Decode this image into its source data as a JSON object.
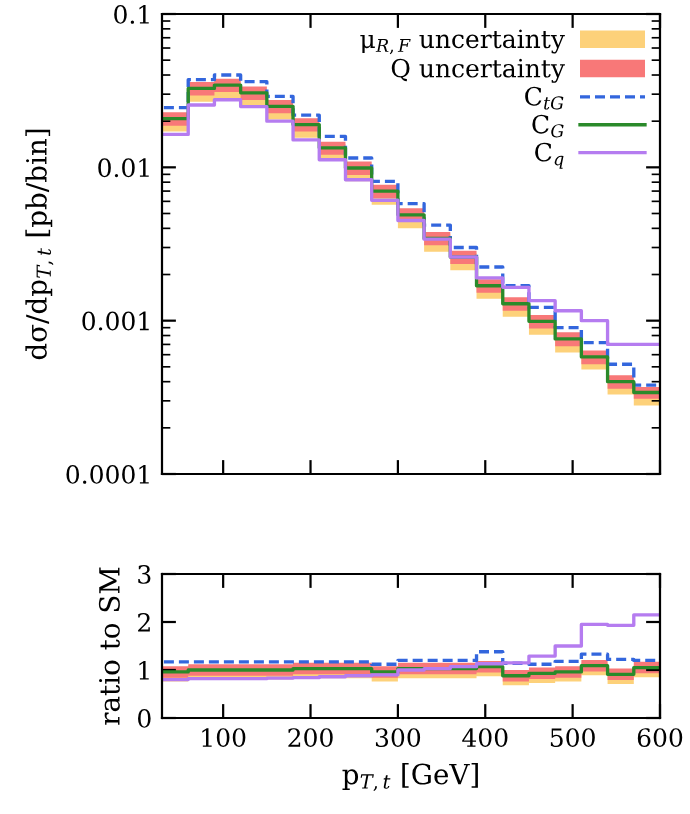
{
  "chart_data": [
    {
      "type": "step",
      "ylabel": "dσ/dp$_{T,t}$ [pb/bin]",
      "log": "y",
      "legend": "top right",
      "tick_labels": "y",
      "x": [
        45,
        75,
        105,
        135,
        165,
        195,
        225,
        255,
        285,
        315,
        345,
        375,
        405,
        435,
        465,
        495,
        525,
        555,
        585
      ],
      "xlim": [
        30,
        600
      ],
      "xticks": [
        100,
        200,
        300,
        400,
        500,
        600
      ],
      "ylim": [
        0.0001,
        0.1
      ],
      "yticks": [
        0.0001,
        0.001,
        0.01,
        0.1
      ],
      "series": [
        {
          "type": "step",
          "name": "μ$_{R,F}$ uncertainty",
          "color": "#fdd17a",
          "values": [
            null,
            null,
            null,
            null,
            null,
            null,
            null,
            null,
            null,
            null,
            null,
            null,
            null,
            null,
            null,
            null,
            null,
            null,
            null
          ],
          "lower": [
            0.0171,
            0.0268,
            0.0282,
            0.0251,
            0.0205,
            0.0156,
            0.011,
            0.0081,
            0.0057,
            0.004,
            0.00282,
            0.00213,
            0.00139,
            0.00106,
            0.00081,
            0.00062,
            0.00048,
            0.00033,
            0.00028
          ],
          "upper": [
            0.022,
            0.0347,
            0.0365,
            0.0324,
            0.0265,
            0.0201,
            0.0142,
            0.0105,
            0.0074,
            0.0052,
            0.00365,
            0.00276,
            0.00179,
            0.00137,
            0.00105,
            0.00081,
            0.00061,
            0.00042,
            0.00036
          ]
        },
        {
          "type": "step",
          "name": "Q uncertainty",
          "color": "#f87878",
          "values": [
            null,
            null,
            null,
            null,
            null,
            null,
            null,
            null,
            null,
            null,
            null,
            null,
            null,
            null,
            null,
            null,
            null,
            null,
            null
          ],
          "lower": [
            0.0187,
            0.0294,
            0.031,
            0.0275,
            0.0225,
            0.0171,
            0.0121,
            0.0089,
            0.0063,
            0.0044,
            0.0031,
            0.00234,
            0.00152,
            0.00116,
            0.00089,
            0.00068,
            0.00052,
            0.00036,
            0.00031
          ],
          "upper": [
            0.0229,
            0.036,
            0.0378,
            0.0337,
            0.0275,
            0.0209,
            0.0147,
            0.0109,
            0.0077,
            0.0054,
            0.00378,
            0.00286,
            0.00186,
            0.00142,
            0.00109,
            0.00084,
            0.00064,
            0.00044,
            0.00037
          ]
        },
        {
          "type": "step",
          "name": "C$_{tG}$",
          "color": "#3366dd",
          "line_style": "dashed",
          "values": [
            0.0245,
            0.0373,
            0.04,
            0.0362,
            0.029,
            0.0219,
            0.0159,
            0.0115,
            0.0081,
            0.0058,
            0.0042,
            0.003,
            0.00224,
            0.00169,
            0.00122,
            0.0009,
            0.00072,
            0.00052,
            0.00038
          ]
        },
        {
          "type": "step",
          "name": "C$_{G}$",
          "color": "#2a8a2a",
          "line_style": "solid",
          "values": [
            0.0208,
            0.0327,
            0.0344,
            0.0306,
            0.025,
            0.019,
            0.0134,
            0.0099,
            0.007,
            0.0049,
            0.00344,
            0.0026,
            0.00169,
            0.00129,
            0.00099,
            0.00076,
            0.00058,
            0.0004,
            0.00034
          ]
        },
        {
          "type": "step",
          "name": "C$_{q}$",
          "color": "#b57cf0",
          "line_style": "solid",
          "values": [
            0.0164,
            0.0255,
            0.0276,
            0.0249,
            0.02,
            0.0151,
            0.0112,
            0.0083,
            0.0061,
            0.0045,
            0.0034,
            0.0026,
            0.0019,
            0.00165,
            0.00135,
            0.00116,
            0.001,
            0.0007,
            0.0007
          ]
        }
      ]
    },
    {
      "type": "step",
      "xlabel": "p$_{T,t}$ [GeV]",
      "ylabel": "ratio to SM",
      "x": [
        45,
        75,
        105,
        135,
        165,
        195,
        225,
        255,
        285,
        315,
        345,
        375,
        405,
        435,
        465,
        495,
        525,
        555,
        585
      ],
      "xlim": [
        30,
        600
      ],
      "xticks": [
        100,
        200,
        300,
        400,
        500,
        600
      ],
      "ylim": [
        0,
        3
      ],
      "yticks": [
        0,
        1,
        2,
        3
      ],
      "series": [
        {
          "type": "step",
          "color": "#fdd17a",
          "values": [
            null,
            null,
            null,
            null,
            null,
            null,
            null,
            null,
            null,
            null,
            null,
            null,
            null,
            null,
            null,
            null,
            null,
            null,
            null
          ],
          "lower": [
            0.76,
            0.8,
            0.8,
            0.8,
            0.8,
            0.83,
            0.83,
            0.83,
            0.76,
            0.83,
            0.83,
            0.83,
            0.87,
            0.68,
            0.73,
            0.76,
            0.89,
            0.71,
            0.85
          ],
          "upper": [
            1.02,
            1.06,
            1.06,
            1.06,
            1.06,
            1.09,
            1.09,
            1.09,
            1.02,
            1.09,
            1.09,
            1.09,
            1.13,
            0.94,
            0.99,
            1.02,
            1.15,
            0.97,
            1.11
          ]
        },
        {
          "type": "step",
          "color": "#f87878",
          "values": [
            null,
            null,
            null,
            null,
            null,
            null,
            null,
            null,
            null,
            null,
            null,
            null,
            null,
            null,
            null,
            null,
            null,
            null,
            null
          ],
          "lower": [
            0.84,
            0.88,
            0.88,
            0.88,
            0.88,
            0.91,
            0.91,
            0.91,
            0.84,
            0.91,
            0.91,
            0.91,
            0.95,
            0.76,
            0.81,
            0.84,
            0.97,
            0.79,
            0.93
          ],
          "upper": [
            1.08,
            1.12,
            1.12,
            1.12,
            1.12,
            1.15,
            1.15,
            1.15,
            1.08,
            1.15,
            1.15,
            1.15,
            1.19,
            1.0,
            1.05,
            1.08,
            1.21,
            1.03,
            1.17
          ]
        },
        {
          "type": "step",
          "color": "#3366dd",
          "line_style": "dashed",
          "values": [
            1.17,
            1.17,
            1.17,
            1.17,
            1.17,
            1.17,
            1.17,
            1.17,
            1.12,
            1.2,
            1.2,
            1.2,
            1.38,
            1.14,
            1.12,
            1.18,
            1.33,
            1.22,
            1.2
          ]
        },
        {
          "type": "step",
          "color": "#2a8a2a",
          "line_style": "solid",
          "values": [
            0.96,
            1.0,
            1.0,
            1.0,
            1.0,
            1.03,
            1.03,
            1.03,
            0.96,
            1.03,
            1.03,
            1.03,
            1.07,
            0.88,
            0.93,
            0.96,
            1.09,
            0.91,
            1.05
          ]
        },
        {
          "type": "step",
          "color": "#b57cf0",
          "line_style": "solid",
          "values": [
            0.8,
            0.82,
            0.82,
            0.82,
            0.83,
            0.84,
            0.86,
            0.88,
            0.9,
            1.0,
            1.03,
            1.07,
            1.13,
            1.15,
            1.29,
            1.5,
            1.95,
            1.93,
            2.15
          ]
        }
      ]
    }
  ]
}
